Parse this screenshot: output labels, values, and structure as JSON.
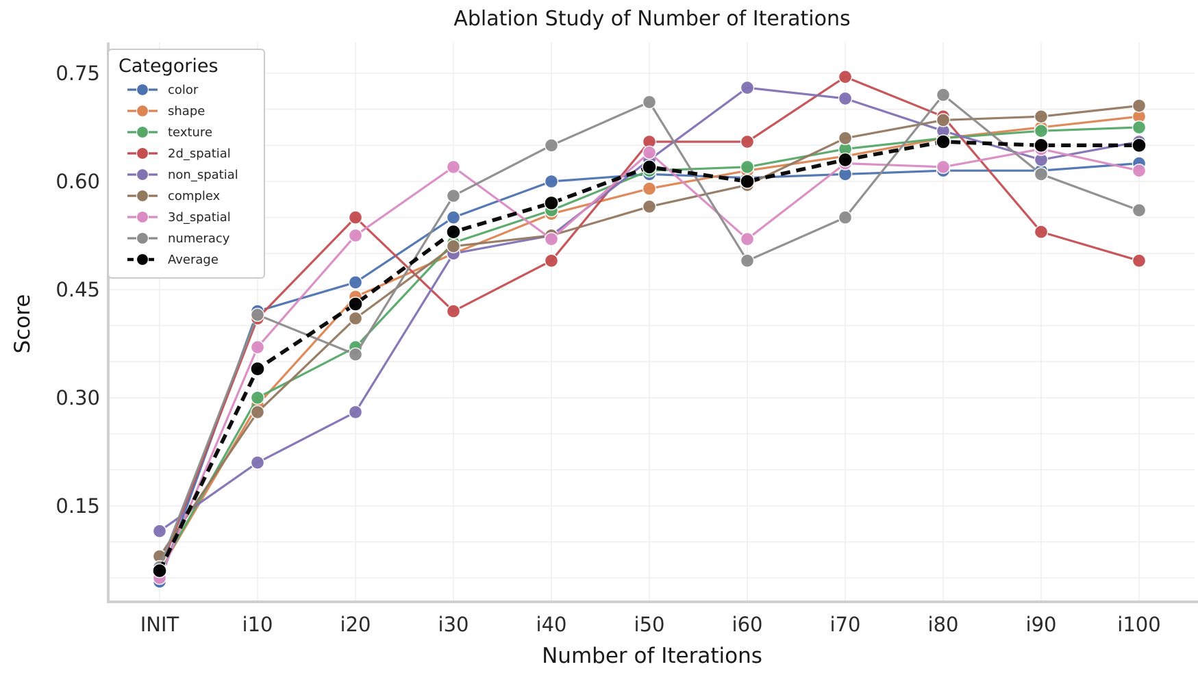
{
  "figure": {
    "background": "#ffffff",
    "grid_color": "#efefef",
    "spine_color": "#d0d0d0",
    "tick_label_color": "#2b2b2b"
  },
  "chart_data": {
    "type": "line",
    "title": "Ablation Study of Number of Iterations",
    "xlabel": "Number of Iterations",
    "ylabel": "Score",
    "categories": [
      "INIT",
      "i10",
      "i20",
      "i30",
      "i40",
      "i50",
      "i60",
      "i70",
      "i80",
      "i90",
      "i100"
    ],
    "ytick_labels": [
      "0.75",
      "0.60",
      "0.45",
      "0.30",
      "0.15"
    ],
    "ytick_values": [
      0.75,
      0.6,
      0.45,
      0.3,
      0.15
    ],
    "ylim": [
      0.02,
      0.79
    ],
    "grid": "horizontal lines every 0.05 and vertical lines at each category, very light gray",
    "legend": {
      "title": "Categories",
      "position": "upper left"
    },
    "series": [
      {
        "name": "color",
        "color": "#4C72B0",
        "style": "solid",
        "values": [
          0.045,
          0.42,
          0.46,
          0.55,
          0.6,
          0.61,
          0.605,
          0.61,
          0.615,
          0.615,
          0.625
        ]
      },
      {
        "name": "shape",
        "color": "#DD8452",
        "style": "solid",
        "values": [
          0.06,
          0.29,
          0.44,
          0.5,
          0.555,
          0.59,
          0.615,
          0.635,
          0.66,
          0.675,
          0.69
        ]
      },
      {
        "name": "texture",
        "color": "#55A868",
        "style": "solid",
        "values": [
          0.06,
          0.3,
          0.37,
          0.515,
          0.56,
          0.615,
          0.62,
          0.645,
          0.66,
          0.67,
          0.675
        ]
      },
      {
        "name": "2d_spatial",
        "color": "#C44E52",
        "style": "solid",
        "values": [
          0.06,
          0.41,
          0.55,
          0.42,
          0.49,
          0.655,
          0.655,
          0.745,
          0.69,
          0.53,
          0.49
        ]
      },
      {
        "name": "non_spatial",
        "color": "#8172B3",
        "style": "solid",
        "values": [
          0.115,
          0.21,
          0.28,
          0.5,
          0.525,
          0.63,
          0.73,
          0.715,
          0.67,
          0.63,
          0.655
        ]
      },
      {
        "name": "complex",
        "color": "#937860",
        "style": "solid",
        "values": [
          0.08,
          0.28,
          0.41,
          0.51,
          0.525,
          0.565,
          0.595,
          0.66,
          0.685,
          0.69,
          0.705
        ]
      },
      {
        "name": "3d_spatial",
        "color": "#DA8BC3",
        "style": "solid",
        "values": [
          0.05,
          0.37,
          0.525,
          0.62,
          0.52,
          0.64,
          0.52,
          0.625,
          0.62,
          0.645,
          0.615
        ]
      },
      {
        "name": "numeracy",
        "color": "#8C8C8C",
        "style": "solid",
        "values": [
          0.065,
          0.415,
          0.36,
          0.58,
          0.65,
          0.71,
          0.49,
          0.55,
          0.72,
          0.61,
          0.56
        ]
      },
      {
        "name": "Average",
        "color": "#000000",
        "style": "dashed",
        "values": [
          0.06,
          0.34,
          0.43,
          0.53,
          0.57,
          0.62,
          0.6,
          0.63,
          0.655,
          0.65,
          0.65
        ]
      }
    ]
  }
}
